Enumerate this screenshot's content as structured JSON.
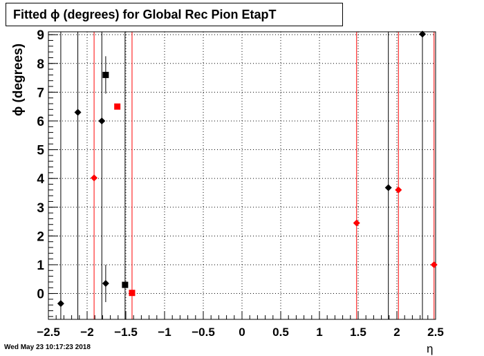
{
  "title": "Fitted ϕ (degrees) for Global Rec Pion EtapT",
  "timestamp": "Wed May 23 10:17:23 2018",
  "chart_data": {
    "type": "scatter",
    "title": "Fitted ϕ (degrees) for Global Rec Pion EtapT",
    "xlabel": "η",
    "ylabel": "ϕ (degrees)",
    "xlim": [
      -2.5,
      2.5
    ],
    "ylim": [
      -0.9,
      9.1
    ],
    "xticks": [
      "−2.5",
      "−2",
      "−1.5",
      "−1",
      "−0.5",
      "0",
      "0.5",
      "1",
      "1.5",
      "2",
      "2.5"
    ],
    "yticks": [
      "0",
      "1",
      "2",
      "3",
      "4",
      "5",
      "6",
      "7",
      "8",
      "9"
    ],
    "grid": true,
    "series": [
      {
        "color": "#000000",
        "marker": "diamond",
        "points": [
          {
            "x": -2.34,
            "y": -0.35,
            "vline": true
          },
          {
            "x": -2.12,
            "y": 6.3,
            "vline": true
          },
          {
            "x": -1.81,
            "y": 6.0,
            "vline": true
          },
          {
            "x": -1.76,
            "y": 0.35,
            "err": 0.65
          },
          {
            "x": 1.89,
            "y": 3.68,
            "vline": true
          },
          {
            "x": 2.33,
            "y": 9.02,
            "vline": true
          }
        ]
      },
      {
        "color": "#000000",
        "marker": "square",
        "points": [
          {
            "x": -1.76,
            "y": 7.6,
            "err": 0.65
          },
          {
            "x": -1.51,
            "y": 0.3,
            "vline": true
          }
        ]
      },
      {
        "color": "#ff0000",
        "marker": "diamond",
        "points": [
          {
            "x": -1.91,
            "y": 4.02,
            "vline": true
          },
          {
            "x": 1.48,
            "y": 2.45,
            "vline": true
          },
          {
            "x": 2.02,
            "y": 3.6,
            "vline": true
          },
          {
            "x": 2.48,
            "y": 1.0,
            "vline": true
          }
        ]
      },
      {
        "color": "#ff0000",
        "marker": "square",
        "points": [
          {
            "x": -1.61,
            "y": 6.5
          },
          {
            "x": -1.42,
            "y": 0.02,
            "vline": true
          }
        ]
      }
    ]
  }
}
